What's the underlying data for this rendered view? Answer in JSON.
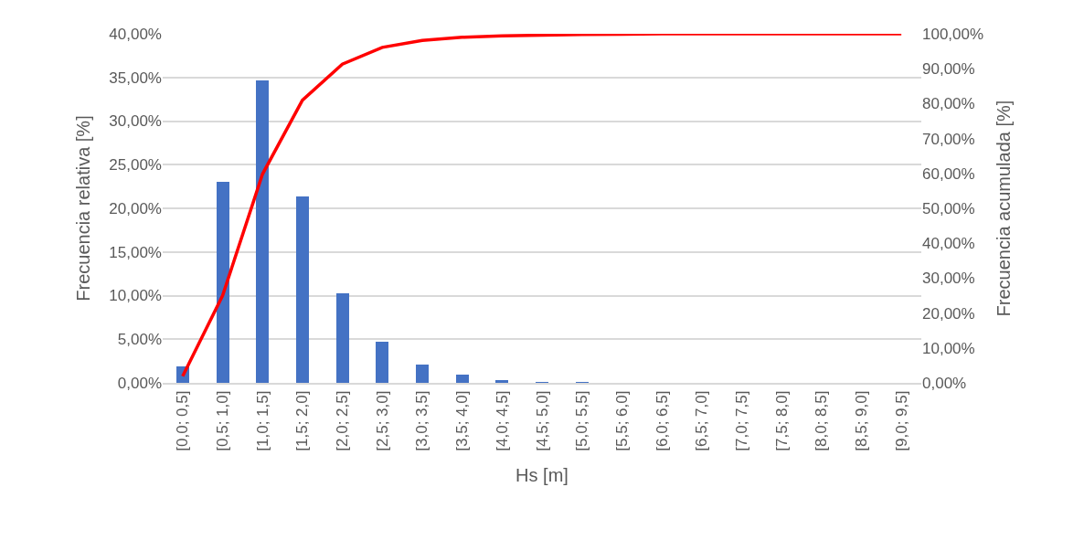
{
  "chart_data": {
    "type": "bar",
    "xlabel": "Hs [m]",
    "ylabel": "Frecuencia relativa [%]",
    "y2label": "Frecuencia acumulada [%]",
    "categories": [
      "[0,0; 0,5]",
      "[0,5; 1,0]",
      "[1,0; 1,5]",
      "[1,5; 2,0]",
      "[2,0; 2,5]",
      "[2,5; 3,0]",
      "[3,0; 3,5]",
      "[3,5; 4,0]",
      "[4,0; 4,5]",
      "[4,5; 5,0]",
      "[5,0; 5,5]",
      "[5,5; 6,0]",
      "[6,0; 6,5]",
      "[6,5; 7,0]",
      "[7,0; 7,5]",
      "[7,5; 8,0]",
      "[8,0; 8,5]",
      "[8,5; 9,0]",
      "[9,0; 9,5]"
    ],
    "series": [
      {
        "color": "#4472c4",
        "values": [
          1.9,
          23.0,
          34.7,
          21.4,
          10.3,
          4.7,
          2.1,
          0.9,
          0.3,
          0.1,
          0.1,
          0,
          0,
          0,
          0,
          0,
          0,
          0,
          0
        ]
      },
      {
        "type": "line",
        "axis": "y2",
        "color": "#ff0000",
        "line_style": "solid",
        "marker": "none",
        "values": [
          1.9,
          25.0,
          59.8,
          81.0,
          91.3,
          96.1,
          98.1,
          99.0,
          99.4,
          99.6,
          99.8,
          99.9,
          100,
          100,
          100,
          100,
          100,
          100,
          100
        ]
      }
    ],
    "ylim": [
      0,
      40
    ],
    "yticks": [
      {
        "value": 0,
        "label": "0,00%"
      },
      {
        "value": 5,
        "label": "5,00%"
      },
      {
        "value": 10,
        "label": "10,00%"
      },
      {
        "value": 15,
        "label": "15,00%"
      },
      {
        "value": 20,
        "label": "20,00%"
      },
      {
        "value": 25,
        "label": "25,00%"
      },
      {
        "value": 30,
        "label": "30,00%"
      },
      {
        "value": 35,
        "label": "35,00%"
      },
      {
        "value": 40,
        "label": "40,00%"
      }
    ],
    "y2lim": [
      0,
      100
    ],
    "y2ticks": [
      {
        "value": 0,
        "label": "0,00%"
      },
      {
        "value": 10,
        "label": "10,00%"
      },
      {
        "value": 20,
        "label": "20,00%"
      },
      {
        "value": 30,
        "label": "30,00%"
      },
      {
        "value": 40,
        "label": "40,00%"
      },
      {
        "value": 50,
        "label": "50,00%"
      },
      {
        "value": 60,
        "label": "60,00%"
      },
      {
        "value": 70,
        "label": "70,00%"
      },
      {
        "value": 80,
        "label": "80,00%"
      },
      {
        "value": 90,
        "label": "90,00%"
      },
      {
        "value": 100,
        "label": "100,00%"
      }
    ],
    "grid": "y",
    "legend": false
  }
}
